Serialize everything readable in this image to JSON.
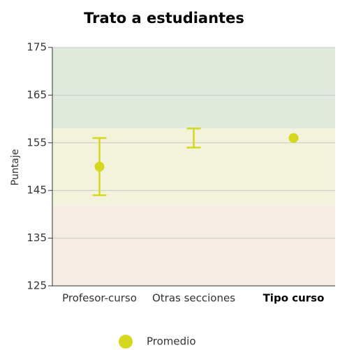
{
  "chart_data": {
    "type": "errorbar",
    "title": "Trato a estudiantes",
    "y_label": "Puntaje",
    "categories": [
      "Profesor-curso",
      "Otras secciones",
      "Tipo curso"
    ],
    "category_weights": [
      "normal",
      "normal",
      "bold"
    ],
    "series": [
      {
        "name": "Promedio",
        "color": "#d6d81f",
        "values": [
          150,
          null,
          156
        ],
        "low": [
          144,
          154,
          null
        ],
        "high": [
          156,
          158,
          null
        ]
      }
    ],
    "bands": [
      {
        "from": 125,
        "to": 142,
        "color": "#f5ece3"
      },
      {
        "from": 142,
        "to": 158,
        "color": "#f3f3dc"
      },
      {
        "from": 158,
        "to": 175,
        "color": "#dfeadd"
      }
    ],
    "ylim": [
      125,
      175
    ],
    "yticks": [
      125,
      135,
      145,
      155,
      165,
      175
    ],
    "grid": true
  }
}
